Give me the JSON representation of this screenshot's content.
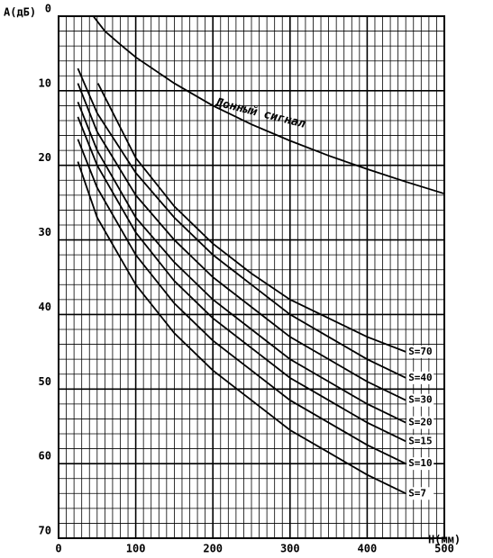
{
  "chart_data": {
    "type": "line",
    "y_label": "A(дБ)",
    "x_label": "H(мм)",
    "xlim": [
      0,
      500
    ],
    "xticks": [
      0,
      100,
      200,
      300,
      400,
      500
    ],
    "ylim": [
      0,
      70
    ],
    "yticks": [
      0,
      10,
      20,
      30,
      40,
      50,
      60,
      70
    ],
    "y_inverted": true,
    "grid": true,
    "color": "#000000",
    "series": [
      {
        "name": "Донный сигнал",
        "x": [
          45,
          60,
          80,
          100,
          150,
          200,
          250,
          300,
          350,
          400,
          450,
          500
        ],
        "values": [
          0,
          2,
          3.8,
          5.5,
          9,
          12,
          14.5,
          16.7,
          18.7,
          20.5,
          22.2,
          23.8
        ]
      },
      {
        "name": "S=70",
        "x": [
          51,
          100,
          150,
          200,
          250,
          300,
          350,
          400,
          450
        ],
        "values": [
          9,
          19,
          25.5,
          30.5,
          34.5,
          38,
          40.5,
          43,
          45
        ]
      },
      {
        "name": "S=40",
        "x": [
          25,
          50,
          100,
          150,
          200,
          250,
          300,
          350,
          400,
          450
        ],
        "values": [
          7,
          13,
          21,
          27,
          32,
          36,
          40,
          43,
          46,
          48.5
        ]
      },
      {
        "name": "S=30",
        "x": [
          25,
          50,
          100,
          150,
          200,
          250,
          300,
          350,
          400,
          450
        ],
        "values": [
          9,
          15.5,
          24,
          30,
          35,
          39,
          43,
          46,
          49,
          51.5
        ]
      },
      {
        "name": "S=20",
        "x": [
          25,
          50,
          100,
          150,
          200,
          250,
          300,
          350,
          400,
          450
        ],
        "values": [
          11.5,
          18,
          27,
          33,
          38,
          42,
          46,
          49,
          52,
          54.5
        ]
      },
      {
        "name": "S=15",
        "x": [
          25,
          50,
          100,
          150,
          200,
          250,
          300,
          350,
          400,
          450
        ],
        "values": [
          13.5,
          20,
          29,
          35.5,
          40.5,
          44.5,
          48.5,
          51.5,
          54.5,
          57
        ]
      },
      {
        "name": "S=10",
        "x": [
          25,
          50,
          100,
          150,
          200,
          250,
          300,
          350,
          400,
          450
        ],
        "values": [
          16.5,
          23,
          32,
          38.5,
          43.5,
          47.5,
          51.5,
          54.5,
          57.5,
          60
        ]
      },
      {
        "name": "S=7",
        "x": [
          25,
          50,
          100,
          150,
          200,
          250,
          300,
          350,
          400,
          450
        ],
        "values": [
          19.5,
          27,
          36,
          42.5,
          47.5,
          51.5,
          55.5,
          58.5,
          61.5,
          64
        ]
      }
    ]
  }
}
